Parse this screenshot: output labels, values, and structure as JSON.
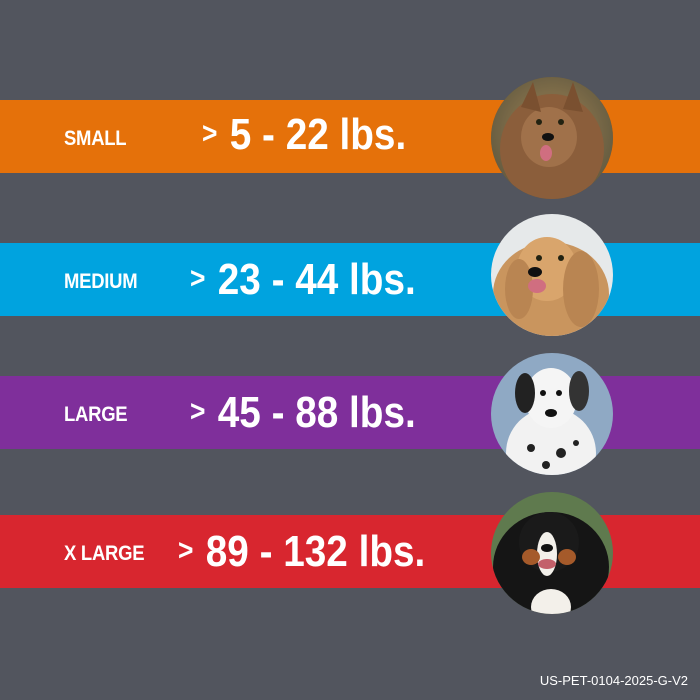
{
  "colors": {
    "background": "#52555e",
    "small": "#e5710a",
    "medium": "#00a3df",
    "large": "#7f2f9b",
    "xlarge": "#d8262f"
  },
  "sizes": [
    {
      "label": "SMALL",
      "arrow": ">",
      "range": "5 - 22 lbs.",
      "photo": "norwich-terrier-photo"
    },
    {
      "label": "MEDIUM",
      "arrow": ">",
      "range": "23 - 44 lbs.",
      "photo": "cocker-spaniel-photo"
    },
    {
      "label": "LARGE",
      "arrow": ">",
      "range": "45 - 88 lbs.",
      "photo": "dalmatian-photo"
    },
    {
      "label": "X LARGE",
      "arrow": ">",
      "range": "89 - 132 lbs.",
      "photo": "bernese-mountain-dog-photo"
    }
  ],
  "footer": {
    "code": "US-PET-0104-2025-G-V2"
  }
}
